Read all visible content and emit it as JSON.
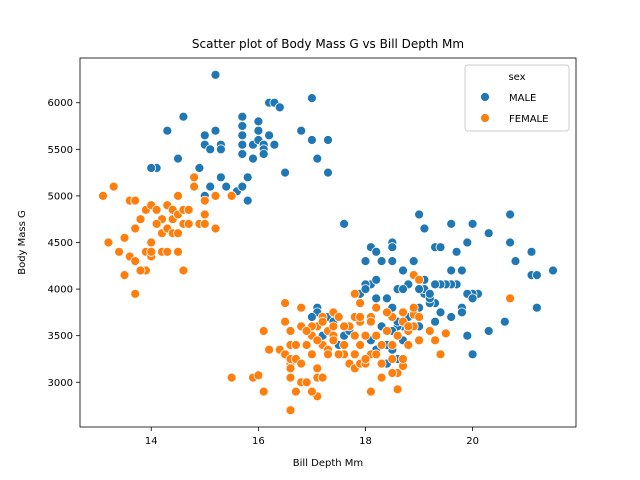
{
  "chart_data": {
    "type": "scatter",
    "title": "Scatter plot of Body Mass G vs Bill Depth Mm",
    "xlabel": "Bill Depth Mm",
    "ylabel": "Body Mass G",
    "xlim": [
      12.67,
      21.93
    ],
    "ylim": [
      2520,
      6480
    ],
    "xticks": [
      14,
      16,
      18,
      20
    ],
    "yticks": [
      3000,
      3500,
      4000,
      4500,
      5000,
      5500,
      6000
    ],
    "grid": false,
    "legend": {
      "title": "sex",
      "placement": "top-right"
    },
    "series": [
      {
        "name": "MALE",
        "color": "#1f77b4",
        "points": [
          [
            15.2,
            6300
          ],
          [
            14.3,
            5700
          ],
          [
            14.6,
            5850
          ],
          [
            14.1,
            5300
          ],
          [
            14.0,
            5300
          ],
          [
            14.5,
            5400
          ],
          [
            15.0,
            5650
          ],
          [
            15.0,
            5550
          ],
          [
            15.1,
            5500
          ],
          [
            15.2,
            5700
          ],
          [
            15.3,
            5550
          ],
          [
            15.3,
            5500
          ],
          [
            15.7,
            5850
          ],
          [
            15.7,
            5750
          ],
          [
            15.7,
            5650
          ],
          [
            15.7,
            5550
          ],
          [
            15.7,
            5450
          ],
          [
            15.9,
            5550
          ],
          [
            15.9,
            5400
          ],
          [
            16.0,
            5800
          ],
          [
            16.0,
            5700
          ],
          [
            16.0,
            5600
          ],
          [
            16.1,
            5550
          ],
          [
            16.1,
            5500
          ],
          [
            16.1,
            5450
          ],
          [
            16.2,
            6000
          ],
          [
            16.3,
            6000
          ],
          [
            16.4,
            5950
          ],
          [
            16.2,
            5650
          ],
          [
            16.3,
            5550
          ],
          [
            16.5,
            5250
          ],
          [
            16.8,
            5700
          ],
          [
            17.0,
            6050
          ],
          [
            17.0,
            5600
          ],
          [
            17.1,
            5400
          ],
          [
            17.3,
            5600
          ],
          [
            17.3,
            5250
          ],
          [
            14.9,
            5300
          ],
          [
            15.0,
            5000
          ],
          [
            15.1,
            5100
          ],
          [
            15.3,
            5200
          ],
          [
            15.4,
            5100
          ],
          [
            15.6,
            5050
          ],
          [
            15.7,
            5100
          ],
          [
            15.8,
            5200
          ],
          [
            15.8,
            4950
          ],
          [
            15.5,
            5000
          ],
          [
            17.5,
            3400
          ],
          [
            17.6,
            4700
          ],
          [
            18.0,
            4300
          ],
          [
            18.1,
            4450
          ],
          [
            18.2,
            4400
          ],
          [
            18.3,
            4300
          ],
          [
            18.5,
            4500
          ],
          [
            18.5,
            4450
          ],
          [
            18.5,
            4300
          ],
          [
            18.7,
            4200
          ],
          [
            18.9,
            4300
          ],
          [
            19.0,
            4800
          ],
          [
            19.1,
            4650
          ],
          [
            19.3,
            4450
          ],
          [
            19.4,
            4450
          ],
          [
            19.6,
            4700
          ],
          [
            19.7,
            4400
          ],
          [
            19.9,
            4500
          ],
          [
            20.0,
            4700
          ],
          [
            20.3,
            4600
          ],
          [
            20.7,
            4800
          ],
          [
            20.8,
            4300
          ],
          [
            20.7,
            4500
          ],
          [
            21.1,
            4400
          ],
          [
            21.1,
            4150
          ],
          [
            21.2,
            4150
          ],
          [
            21.5,
            4200
          ],
          [
            21.2,
            3800
          ],
          [
            20.6,
            3650
          ],
          [
            20.3,
            3550
          ],
          [
            20.0,
            3300
          ],
          [
            20.1,
            3950
          ],
          [
            20.0,
            3950
          ],
          [
            19.9,
            3950
          ],
          [
            19.7,
            4050
          ],
          [
            19.6,
            4050
          ],
          [
            19.5,
            4050
          ],
          [
            19.4,
            4050
          ],
          [
            19.3,
            3850
          ],
          [
            19.1,
            4100
          ],
          [
            19.1,
            3950
          ],
          [
            19.2,
            3850
          ],
          [
            19.0,
            3800
          ],
          [
            18.9,
            3750
          ],
          [
            18.8,
            3700
          ],
          [
            18.7,
            3600
          ],
          [
            18.6,
            3600
          ],
          [
            18.5,
            3550
          ],
          [
            18.5,
            3350
          ],
          [
            18.6,
            3250
          ],
          [
            18.4,
            3400
          ],
          [
            18.3,
            3600
          ],
          [
            18.2,
            3900
          ],
          [
            18.1,
            4050
          ],
          [
            18.0,
            4050
          ],
          [
            18.2,
            4100
          ],
          [
            18.4,
            3900
          ],
          [
            18.5,
            3800
          ],
          [
            18.6,
            4000
          ],
          [
            18.8,
            4050
          ],
          [
            18.9,
            4150
          ],
          [
            19.0,
            4100
          ],
          [
            19.1,
            4000
          ],
          [
            19.2,
            3900
          ],
          [
            19.3,
            4050
          ],
          [
            19.4,
            3750
          ],
          [
            19.6,
            3700
          ],
          [
            19.8,
            3800
          ],
          [
            20.0,
            3900
          ],
          [
            19.8,
            4200
          ],
          [
            19.6,
            4200
          ],
          [
            19.9,
            3500
          ],
          [
            19.8,
            3750
          ],
          [
            18.7,
            4000
          ],
          [
            18.9,
            4300
          ],
          [
            19.0,
            4000
          ],
          [
            19.2,
            3950
          ],
          [
            17.6,
            3500
          ],
          [
            17.3,
            3700
          ],
          [
            17.1,
            3800
          ],
          [
            17.1,
            3750
          ],
          [
            17.0,
            3700
          ],
          [
            17.0,
            3600
          ],
          [
            17.2,
            3500
          ],
          [
            17.4,
            3650
          ],
          [
            17.7,
            3550
          ],
          [
            18.1,
            3450
          ],
          [
            18.4,
            3200
          ],
          [
            18.2,
            3350
          ],
          [
            18.6,
            3650
          ],
          [
            18.7,
            3450
          ],
          [
            17.9,
            3950
          ],
          [
            18.0,
            4000
          ],
          [
            19.0,
            3600
          ],
          [
            19.3,
            3650
          ]
        ]
      },
      {
        "name": "FEMALE",
        "color": "#ff7f0e",
        "points": [
          [
            13.1,
            5000
          ],
          [
            13.3,
            5100
          ],
          [
            13.6,
            4950
          ],
          [
            13.7,
            4950
          ],
          [
            13.9,
            4850
          ],
          [
            14.0,
            4900
          ],
          [
            14.1,
            4850
          ],
          [
            14.3,
            4900
          ],
          [
            14.4,
            4850
          ],
          [
            14.4,
            4750
          ],
          [
            14.5,
            5000
          ],
          [
            14.5,
            4800
          ],
          [
            14.6,
            4700
          ],
          [
            14.6,
            4850
          ],
          [
            14.7,
            4850
          ],
          [
            14.8,
            5100
          ],
          [
            14.8,
            5200
          ],
          [
            14.9,
            4700
          ],
          [
            15.0,
            4950
          ],
          [
            15.0,
            4800
          ],
          [
            15.2,
            5000
          ],
          [
            15.5,
            5000
          ],
          [
            14.2,
            4750
          ],
          [
            14.1,
            4700
          ],
          [
            14.2,
            4600
          ],
          [
            14.3,
            4650
          ],
          [
            14.4,
            4600
          ],
          [
            14.5,
            4600
          ],
          [
            14.5,
            4400
          ],
          [
            14.6,
            4200
          ],
          [
            14.7,
            4700
          ],
          [
            15.0,
            4700
          ],
          [
            15.2,
            4650
          ],
          [
            13.2,
            4500
          ],
          [
            13.4,
            4400
          ],
          [
            13.5,
            4550
          ],
          [
            13.6,
            4350
          ],
          [
            13.7,
            4300
          ],
          [
            13.5,
            4150
          ],
          [
            13.9,
            4200
          ],
          [
            13.8,
            4200
          ],
          [
            13.9,
            4400
          ],
          [
            14.0,
            4500
          ],
          [
            14.0,
            4350
          ],
          [
            14.2,
            4400
          ],
          [
            14.3,
            4400
          ],
          [
            13.7,
            3950
          ],
          [
            13.7,
            4650
          ],
          [
            13.8,
            4750
          ],
          [
            14.0,
            4400
          ],
          [
            16.1,
            3550
          ],
          [
            15.5,
            3050
          ],
          [
            15.9,
            3050
          ],
          [
            16.0,
            3075
          ],
          [
            16.1,
            2900
          ],
          [
            16.2,
            3350
          ],
          [
            16.4,
            3350
          ],
          [
            16.5,
            3300
          ],
          [
            16.6,
            3200
          ],
          [
            16.6,
            3250
          ],
          [
            16.7,
            3250
          ],
          [
            16.8,
            3200
          ],
          [
            16.5,
            3850
          ],
          [
            16.5,
            3650
          ],
          [
            16.6,
            3400
          ],
          [
            16.6,
            3050
          ],
          [
            16.6,
            2700
          ],
          [
            16.7,
            2900
          ],
          [
            16.8,
            3000
          ],
          [
            16.9,
            3000
          ],
          [
            16.7,
            3400
          ],
          [
            16.8,
            3800
          ],
          [
            16.8,
            3600
          ],
          [
            16.9,
            3550
          ],
          [
            16.9,
            3400
          ],
          [
            17.0,
            3500
          ],
          [
            17.0,
            3300
          ],
          [
            17.1,
            3150
          ],
          [
            17.1,
            3050
          ],
          [
            17.1,
            3600
          ],
          [
            17.1,
            2850
          ],
          [
            17.2,
            3700
          ],
          [
            17.2,
            3650
          ],
          [
            17.2,
            3400
          ],
          [
            17.3,
            3350
          ],
          [
            17.3,
            3550
          ],
          [
            17.2,
            3050
          ],
          [
            17.0,
            2900
          ],
          [
            17.4,
            3600
          ],
          [
            17.4,
            3750
          ],
          [
            17.5,
            3700
          ],
          [
            17.6,
            3300
          ],
          [
            17.7,
            3200
          ],
          [
            17.8,
            3300
          ],
          [
            17.8,
            3150
          ],
          [
            17.9,
            3200
          ],
          [
            17.9,
            3400
          ],
          [
            17.9,
            3650
          ],
          [
            18.0,
            3200
          ],
          [
            18.0,
            3500
          ],
          [
            18.1,
            3300
          ],
          [
            18.1,
            3700
          ],
          [
            18.2,
            3500
          ],
          [
            18.2,
            3300
          ],
          [
            18.3,
            3200
          ],
          [
            18.3,
            3400
          ],
          [
            18.4,
            3550
          ],
          [
            18.5,
            3700
          ],
          [
            18.5,
            3250
          ],
          [
            18.6,
            3100
          ],
          [
            18.6,
            2925
          ],
          [
            18.7,
            3175
          ],
          [
            18.8,
            3400
          ],
          [
            18.8,
            3550
          ],
          [
            18.9,
            3600
          ],
          [
            18.9,
            4150
          ],
          [
            19.0,
            3450
          ],
          [
            19.0,
            4100
          ],
          [
            19.2,
            3550
          ],
          [
            19.3,
            3450
          ],
          [
            19.4,
            3300
          ],
          [
            19.5,
            3525
          ],
          [
            18.1,
            3650
          ],
          [
            18.4,
            3750
          ],
          [
            18.5,
            3400
          ],
          [
            18.6,
            3500
          ],
          [
            18.7,
            3650
          ],
          [
            18.7,
            3750
          ],
          [
            18.8,
            3600
          ],
          [
            18.9,
            3725
          ],
          [
            18.9,
            3800
          ],
          [
            19.0,
            3700
          ],
          [
            17.4,
            3500
          ],
          [
            17.4,
            3450
          ],
          [
            17.5,
            3300
          ],
          [
            17.6,
            3400
          ],
          [
            17.7,
            3600
          ],
          [
            17.8,
            3700
          ],
          [
            17.9,
            3850
          ],
          [
            17.6,
            3600
          ],
          [
            17.0,
            3600
          ],
          [
            17.0,
            3500
          ],
          [
            17.3,
            3300
          ],
          [
            18.0,
            3250
          ],
          [
            18.1,
            2900
          ],
          [
            18.3,
            3050
          ],
          [
            18.5,
            3100
          ],
          [
            18.7,
            3250
          ],
          [
            17.8,
            3950
          ],
          [
            18.2,
            3800
          ],
          [
            16.6,
            3550
          ],
          [
            16.6,
            3150
          ],
          [
            16.9,
            3550
          ],
          [
            17.1,
            3450
          ],
          [
            20.7,
            3900
          ],
          [
            17.9,
            3700
          ],
          [
            17.8,
            3500
          ]
        ]
      }
    ]
  }
}
